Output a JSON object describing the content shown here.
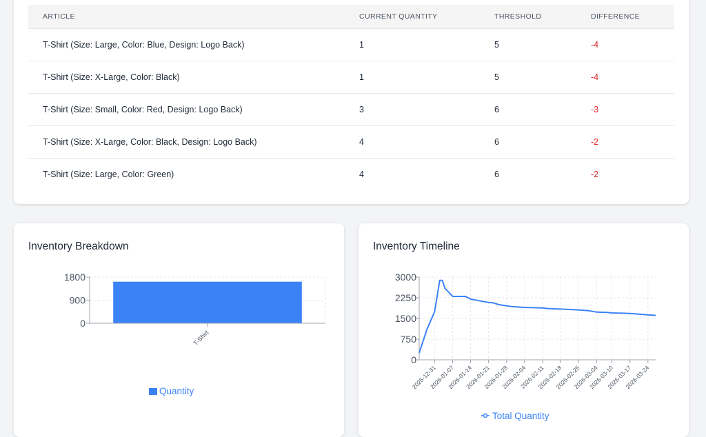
{
  "table": {
    "headers": {
      "article": "ARTICLE",
      "current_quantity": "CURRENT QUANTITY",
      "threshold": "THRESHOLD",
      "difference": "DIFFERENCE"
    },
    "rows": [
      {
        "article": "T-Shirt (Size: Large, Color: Blue, Design: Logo Back)",
        "current_quantity": "1",
        "threshold": "5",
        "difference": "-4"
      },
      {
        "article": "T-Shirt (Size: X-Large, Color: Black)",
        "current_quantity": "1",
        "threshold": "5",
        "difference": "-4"
      },
      {
        "article": "T-Shirt (Size: Small, Color: Red, Design: Logo Back)",
        "current_quantity": "3",
        "threshold": "6",
        "difference": "-3"
      },
      {
        "article": "T-Shirt (Size: X-Large, Color: Black, Design: Logo Back)",
        "current_quantity": "4",
        "threshold": "6",
        "difference": "-2"
      },
      {
        "article": "T-Shirt (Size: Large, Color: Green)",
        "current_quantity": "4",
        "threshold": "6",
        "difference": "-2"
      }
    ]
  },
  "breakdown": {
    "title": "Inventory Breakdown"
  },
  "timeline": {
    "title": "Inventory Timeline"
  },
  "colors": {
    "bar": "#3b82f6",
    "line": "#3b82f6",
    "negative": "#dc2626",
    "grid": "#e5e7eb"
  },
  "chart_data": [
    {
      "type": "bar",
      "title": "Inventory Breakdown",
      "categories": [
        "T-Shirt"
      ],
      "series": [
        {
          "name": "Quantity",
          "values": [
            1620
          ]
        }
      ],
      "ylim": [
        0,
        1800
      ],
      "yticks": [
        "1800",
        "900",
        "0"
      ],
      "grid": true,
      "legend": "bottom"
    },
    {
      "type": "line",
      "title": "Inventory Timeline",
      "x": [
        "2025-12-25",
        "2025-12-28",
        "2025-12-31",
        "2026-01-02",
        "2026-01-03",
        "2026-01-04",
        "2026-01-07",
        "2026-01-10",
        "2026-01-12",
        "2026-01-14",
        "2026-01-18",
        "2026-01-21",
        "2026-01-23",
        "2026-01-25",
        "2026-01-28",
        "2026-01-30",
        "2026-02-04",
        "2026-02-11",
        "2026-02-13",
        "2026-02-18",
        "2026-02-25",
        "2026-03-01",
        "2026-03-04",
        "2026-03-08",
        "2026-03-10",
        "2026-03-17",
        "2026-03-24",
        "2026-03-27"
      ],
      "xticks": [
        "2025-12-31",
        "2026-01-07",
        "2026-01-14",
        "2026-01-21",
        "2026-01-28",
        "2026-02-04",
        "2026-02-11",
        "2026-02-18",
        "2026-02-25",
        "2026-03-04",
        "2026-03-10",
        "2026-03-17",
        "2026-03-24"
      ],
      "series": [
        {
          "name": "Total Quantity",
          "values": [
            250,
            1100,
            1750,
            2880,
            2880,
            2600,
            2300,
            2300,
            2300,
            2200,
            2130,
            2080,
            2060,
            2000,
            1960,
            1930,
            1900,
            1880,
            1860,
            1840,
            1810,
            1780,
            1730,
            1720,
            1700,
            1680,
            1630,
            1610
          ]
        }
      ],
      "ylim": [
        0,
        3000
      ],
      "yticks": [
        "3000",
        "2250",
        "1500",
        "750",
        "0"
      ],
      "grid": true,
      "legend": "bottom"
    }
  ]
}
